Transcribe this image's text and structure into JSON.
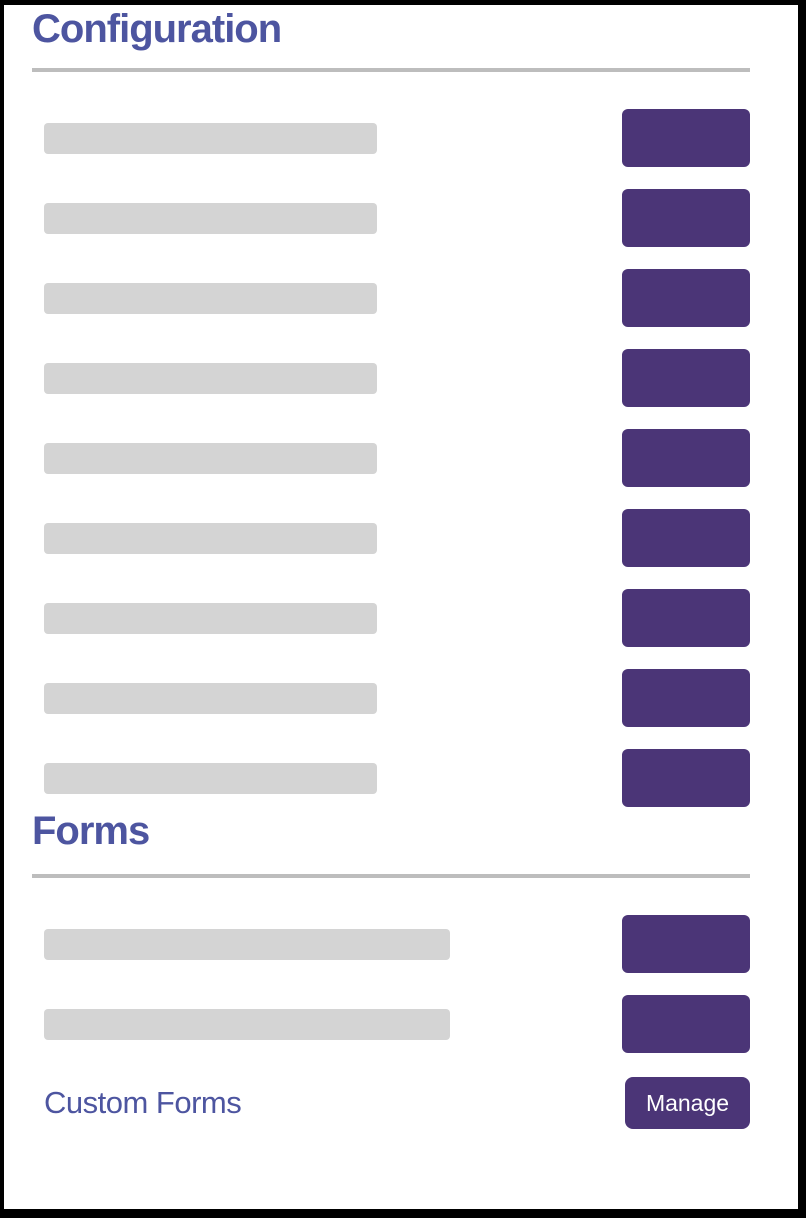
{
  "colors": {
    "heading_text": "#4d55a0",
    "action_button": "#4b3577",
    "action_button_text": "#ffffff",
    "placeholder_bar": "#d4d4d4",
    "divider": "#bdbdbd",
    "frame_border": "#000000",
    "background": "#ffffff"
  },
  "configuration": {
    "title": "Configuration",
    "rows": [
      {
        "label": "placeholder-bar",
        "action": "placeholder-button"
      },
      {
        "label": "placeholder-bar",
        "action": "placeholder-button"
      },
      {
        "label": "placeholder-bar",
        "action": "placeholder-button"
      },
      {
        "label": "placeholder-bar",
        "action": "placeholder-button"
      },
      {
        "label": "placeholder-bar",
        "action": "placeholder-button"
      },
      {
        "label": "placeholder-bar",
        "action": "placeholder-button"
      },
      {
        "label": "placeholder-bar",
        "action": "placeholder-button"
      },
      {
        "label": "placeholder-bar",
        "action": "placeholder-button"
      },
      {
        "label": "placeholder-bar",
        "action": "placeholder-button"
      }
    ]
  },
  "forms": {
    "title": "Forms",
    "rows": [
      {
        "label": "placeholder-bar",
        "action": "placeholder-button"
      },
      {
        "label": "placeholder-bar",
        "action": "placeholder-button"
      }
    ],
    "custom_forms_row": {
      "label": "Custom Forms",
      "button_label": "Manage"
    }
  }
}
